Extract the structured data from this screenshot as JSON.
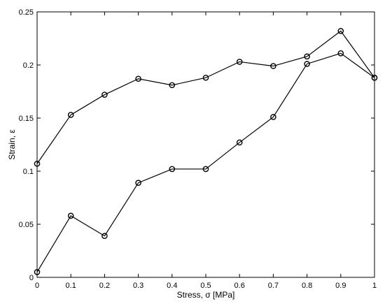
{
  "chart_data": {
    "type": "line",
    "xlabel": "Stress, σ [MPa]",
    "ylabel": "Strain, ε",
    "xlim": [
      0,
      1
    ],
    "ylim": [
      0,
      0.25
    ],
    "xticks": [
      "0",
      "0.1",
      "0.2",
      "0.3",
      "0.4",
      "0.5",
      "0.6",
      "0.7",
      "0.8",
      "0.9",
      "1"
    ],
    "yticks": [
      "0",
      "0.05",
      "0.1",
      "0.15",
      "0.2",
      "0.25"
    ],
    "grid": false,
    "marker": "circle",
    "colors": {
      "line": "#000000",
      "axes": "#000000",
      "background": "#ffffff"
    },
    "series": [
      {
        "x": [
          0,
          0.1,
          0.2,
          0.3,
          0.4,
          0.5,
          0.6,
          0.7,
          0.8,
          0.9,
          1.0
        ],
        "values": [
          0.107,
          0.153,
          0.172,
          0.187,
          0.181,
          0.188,
          0.203,
          0.199,
          0.208,
          0.232,
          0.188
        ]
      },
      {
        "x": [
          0,
          0.1,
          0.2,
          0.3,
          0.4,
          0.5,
          0.6,
          0.7,
          0.8,
          0.9,
          1.0
        ],
        "values": [
          0.005,
          0.058,
          0.039,
          0.089,
          0.102,
          0.102,
          0.127,
          0.151,
          0.201,
          0.211,
          0.188
        ]
      }
    ]
  }
}
